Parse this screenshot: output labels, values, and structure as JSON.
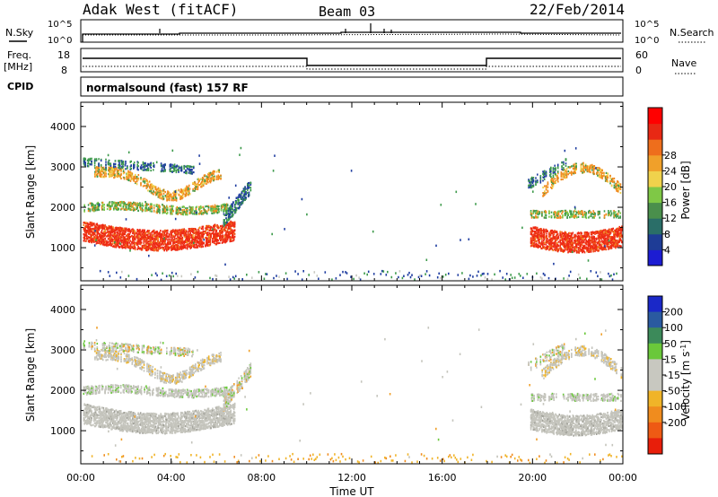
{
  "header": {
    "station": "Adak West (fitACF)",
    "beam": "Beam 03",
    "date": "22/Feb/2014"
  },
  "strip_labels": {
    "nsky": "N.Sky",
    "nsearch": "N.Search",
    "freq": "Freq.",
    "mhz": "[MHz]",
    "nave": "Nave",
    "cpid": "CPID",
    "cpid_value": "normalsound (fast) 157 RF"
  },
  "strip_ticks": {
    "noise_left": [
      "10^5",
      "10^0"
    ],
    "noise_right": [
      "10^5",
      "10^0"
    ],
    "freq_left": [
      "18",
      "8"
    ],
    "nave_right": [
      "60",
      "0"
    ]
  },
  "chart_data": [
    {
      "type": "heatmap",
      "name": "power-panel",
      "ylabel": "Slant Range [km]",
      "yticks": [
        1000,
        2000,
        3000,
        4000
      ],
      "ylim": [
        180,
        4600
      ],
      "xlim_hours": [
        0,
        24
      ],
      "colorbar": {
        "label": "Power [dB]",
        "ticks": [
          "4",
          "8",
          "12",
          "16",
          "20",
          "24",
          "28"
        ],
        "colors": [
          "#1c1cd2",
          "#1e3c96",
          "#2a6e68",
          "#4a8f4c",
          "#7fc846",
          "#f0d24c",
          "#f0a02a",
          "#ee6e1c",
          "#e82814",
          "#ff0000"
        ]
      }
    },
    {
      "type": "heatmap",
      "name": "velocity-panel",
      "ylabel": "Slant Range [km]",
      "yticks": [
        1000,
        2000,
        3000,
        4000
      ],
      "ylim": [
        180,
        4600
      ],
      "xlim_hours": [
        0,
        24
      ],
      "colorbar": {
        "label": "Velocity [m s^-1]",
        "ticks": [
          "200",
          "100",
          "50",
          "15",
          "-15",
          "-50",
          "-100",
          "-200"
        ],
        "colors": [
          "#1a28c8",
          "#2a5aa0",
          "#3c8a5a",
          "#6ac83a",
          "#c8c8c0",
          "#c8c8c0",
          "#f0b428",
          "#f08c1e",
          "#ee5a14",
          "#e81e0a"
        ]
      }
    }
  ],
  "x_axis": {
    "ticks": [
      "00:00",
      "04:00",
      "08:00",
      "12:00",
      "16:00",
      "20:00",
      "00:00"
    ],
    "label": "Time UT"
  },
  "colors": {
    "grey_scatter": "#c4c4bc",
    "power_red": "#ee2a14",
    "power_orange": "#f08a1e",
    "power_green": "#3c9a4a",
    "power_blue": "#1e3ca0"
  }
}
